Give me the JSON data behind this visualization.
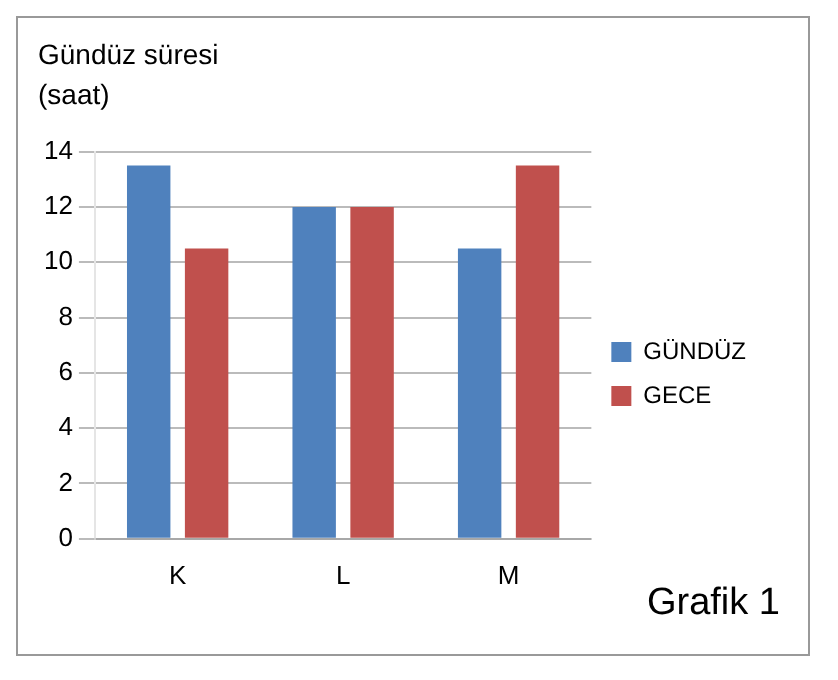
{
  "chart_data": {
    "type": "bar",
    "ylabel": "Gündüz süresi (saat)",
    "categories": [
      "K",
      "L",
      "M"
    ],
    "series": [
      {
        "name": "GÜNDÜZ",
        "color": "#4f81bd",
        "values": [
          13.5,
          12,
          10.5
        ]
      },
      {
        "name": "GECE",
        "color": "#c0504d",
        "values": [
          10.5,
          12,
          13.5
        ]
      }
    ],
    "ylim": [
      0,
      14
    ],
    "yticks": [
      0,
      2,
      4,
      6,
      8,
      10,
      12,
      14
    ],
    "grid": "y",
    "legend": "right",
    "annotations": [
      "Grafik 1"
    ]
  }
}
